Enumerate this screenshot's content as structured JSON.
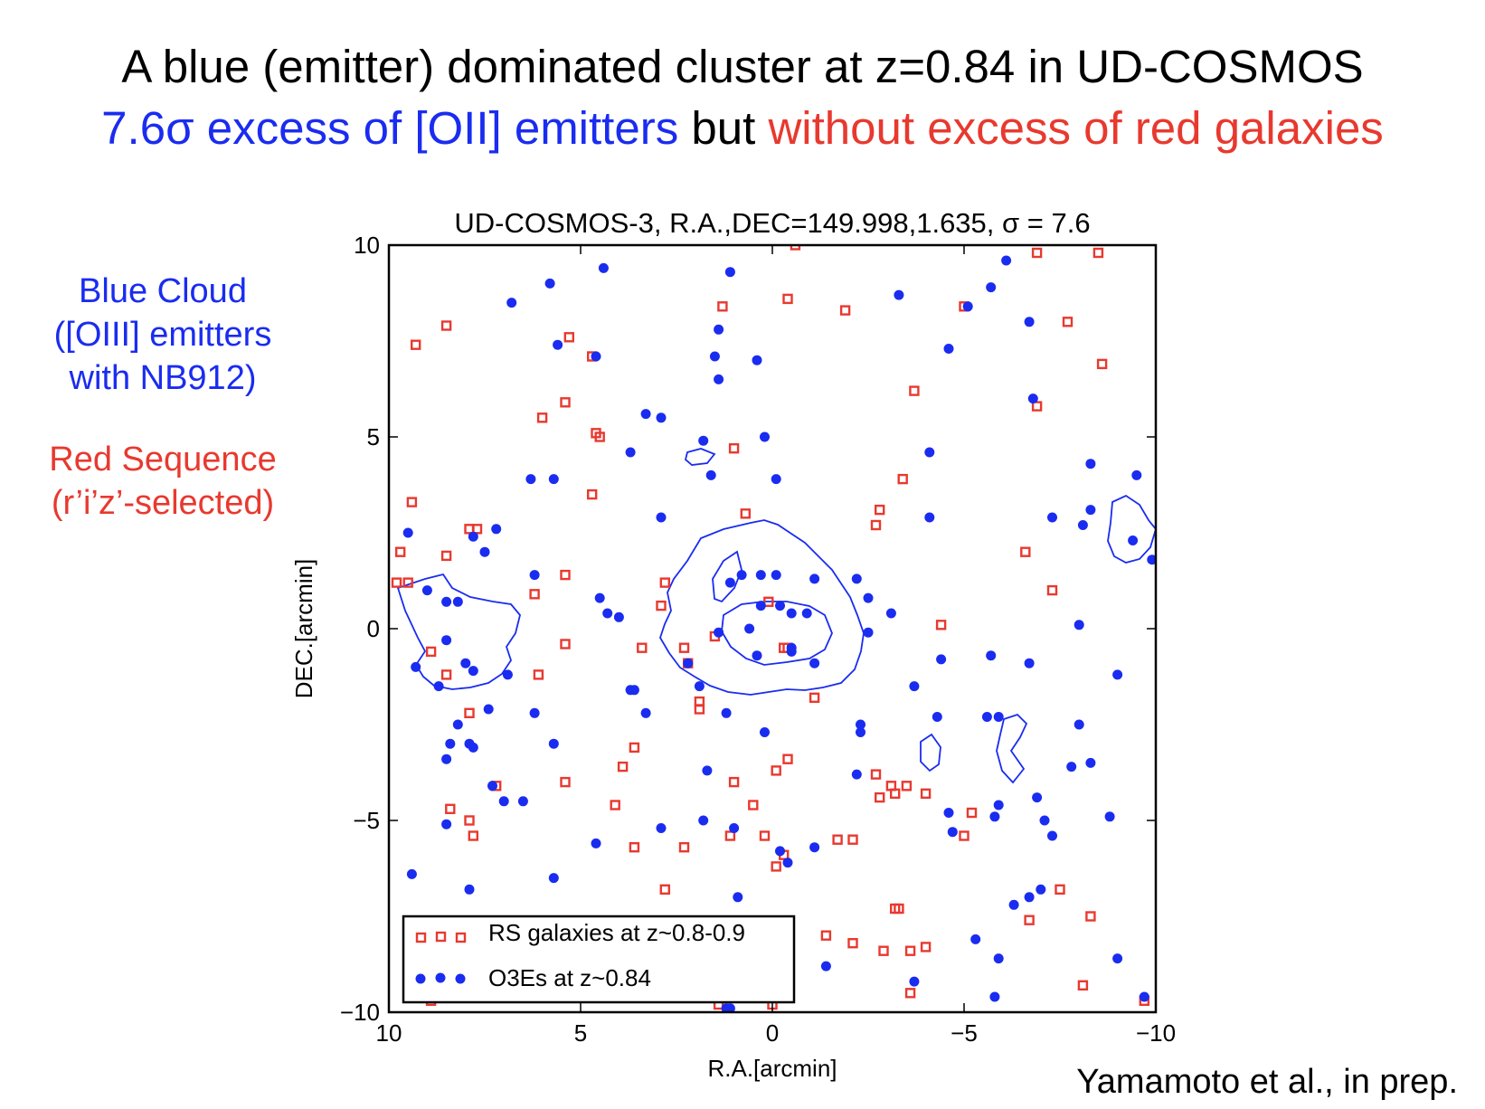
{
  "titles": {
    "line1": "A blue (emitter) dominated cluster at z=0.84 in UD-COSMOS",
    "line2_blue": "7.6σ excess of [OII] emitters",
    "line2_black": " but ",
    "line2_red": "without excess of red galaxies"
  },
  "side_labels": {
    "blue_lines": [
      "Blue Cloud",
      "([OIII] emitters",
      "with NB912)"
    ],
    "red_lines": [
      "Red Sequence",
      "(r’i’z’-selected)"
    ]
  },
  "credit": "Yamamoto et al., in prep.",
  "colors": {
    "blue": "#1a2cf0",
    "red": "#e8392f",
    "axis": "#000000"
  },
  "chart_data": {
    "type": "scatter",
    "title": "UD-COSMOS-3, R.A.,DEC=149.998,1.635, σ = 7.6",
    "xlabel": "R.A.[arcmin]",
    "ylabel": "DEC.[arcmin]",
    "xlim": [
      10,
      -10
    ],
    "ylim": [
      -10,
      10
    ],
    "xticks": [
      10,
      5,
      0,
      -5,
      -10
    ],
    "xtick_labels": [
      "10",
      "5",
      "0",
      "−5",
      "−10"
    ],
    "yticks": [
      10,
      5,
      0,
      -5,
      -10
    ],
    "ytick_labels": [
      "10",
      "5",
      "0",
      "−5",
      "−10"
    ],
    "legend": {
      "placement": "lower-left",
      "entries": [
        "RS galaxies at z~0.8-0.9",
        "O3Es at z~0.84"
      ]
    },
    "series": [
      {
        "name": "RS galaxies at z~0.8-0.9",
        "marker": "open-square",
        "color": "#e8392f",
        "points": [
          [
            9.3,
            7.4
          ],
          [
            8.5,
            7.9
          ],
          [
            5.3,
            7.6
          ],
          [
            4.7,
            7.1
          ],
          [
            1.3,
            8.4
          ],
          [
            -0.4,
            8.6
          ],
          [
            -1.9,
            8.3
          ],
          [
            -5.0,
            8.4
          ],
          [
            -6.9,
            9.8
          ],
          [
            -7.7,
            8.0
          ],
          [
            -8.5,
            9.8
          ],
          [
            -8.6,
            6.9
          ],
          [
            -0.6,
            10.0
          ],
          [
            6.0,
            5.5
          ],
          [
            5.4,
            5.9
          ],
          [
            4.6,
            5.1
          ],
          [
            4.5,
            5.0
          ],
          [
            1.0,
            4.7
          ],
          [
            -3.7,
            6.2
          ],
          [
            -6.9,
            5.8
          ],
          [
            4.7,
            3.5
          ],
          [
            9.4,
            3.3
          ],
          [
            9.7,
            2.0
          ],
          [
            9.8,
            1.2
          ],
          [
            9.5,
            1.2
          ],
          [
            8.5,
            1.9
          ],
          [
            7.9,
            2.6
          ],
          [
            7.7,
            2.6
          ],
          [
            5.4,
            1.4
          ],
          [
            6.2,
            0.9
          ],
          [
            0.7,
            3.0
          ],
          [
            -2.8,
            3.1
          ],
          [
            -2.7,
            2.7
          ],
          [
            -3.4,
            3.9
          ],
          [
            -6.6,
            2.0
          ],
          [
            -7.3,
            1.0
          ],
          [
            2.8,
            1.2
          ],
          [
            2.9,
            0.6
          ],
          [
            0.1,
            0.7
          ],
          [
            -0.3,
            -0.5
          ],
          [
            -0.4,
            -0.5
          ],
          [
            -4.4,
            0.1
          ],
          [
            1.5,
            -0.2
          ],
          [
            3.4,
            -0.5
          ],
          [
            2.3,
            -0.5
          ],
          [
            2.2,
            -0.9
          ],
          [
            8.9,
            -0.6
          ],
          [
            8.5,
            -1.2
          ],
          [
            7.9,
            -2.2
          ],
          [
            6.1,
            -1.2
          ],
          [
            5.4,
            -0.4
          ],
          [
            1.9,
            -1.9
          ],
          [
            1.9,
            -2.1
          ],
          [
            -1.1,
            -1.8
          ],
          [
            3.6,
            -3.1
          ],
          [
            3.9,
            -3.6
          ],
          [
            7.2,
            -4.1
          ],
          [
            5.4,
            -4.0
          ],
          [
            4.1,
            -4.6
          ],
          [
            1.0,
            -4.0
          ],
          [
            0.5,
            -4.6
          ],
          [
            -0.4,
            -3.4
          ],
          [
            -0.1,
            -3.7
          ],
          [
            -2.7,
            -3.8
          ],
          [
            -2.8,
            -4.4
          ],
          [
            -3.1,
            -4.1
          ],
          [
            -3.2,
            -4.3
          ],
          [
            -3.5,
            -4.1
          ],
          [
            -4.0,
            -4.3
          ],
          [
            -5.2,
            -4.8
          ],
          [
            -5.0,
            -5.4
          ],
          [
            8.4,
            -4.7
          ],
          [
            7.9,
            -5.0
          ],
          [
            7.8,
            -5.4
          ],
          [
            3.6,
            -5.7
          ],
          [
            2.3,
            -5.7
          ],
          [
            1.1,
            -5.4
          ],
          [
            0.2,
            -5.4
          ],
          [
            -0.1,
            -6.2
          ],
          [
            -0.3,
            -5.9
          ],
          [
            -1.7,
            -5.5
          ],
          [
            -2.1,
            -5.5
          ],
          [
            2.8,
            -6.8
          ],
          [
            -3.2,
            -7.3
          ],
          [
            -3.3,
            -7.3
          ],
          [
            -6.7,
            -7.6
          ],
          [
            -7.5,
            -6.8
          ],
          [
            -8.3,
            -7.5
          ],
          [
            -1.4,
            -8.0
          ],
          [
            -2.1,
            -8.2
          ],
          [
            -2.9,
            -8.4
          ],
          [
            -3.6,
            -8.4
          ],
          [
            -4.0,
            -8.3
          ],
          [
            -3.6,
            -9.5
          ],
          [
            -8.1,
            -9.3
          ],
          [
            -9.7,
            -9.7
          ],
          [
            8.9,
            -9.7
          ],
          [
            1.4,
            -9.8
          ],
          [
            0.0,
            -9.8
          ]
        ]
      },
      {
        "name": "O3Es at z~0.84",
        "marker": "filled-circle",
        "color": "#1a2cf0",
        "points": [
          [
            4.4,
            9.4
          ],
          [
            5.8,
            9.0
          ],
          [
            6.8,
            8.5
          ],
          [
            1.1,
            9.3
          ],
          [
            -3.3,
            8.7
          ],
          [
            -5.1,
            8.4
          ],
          [
            -5.7,
            8.9
          ],
          [
            -6.1,
            9.6
          ],
          [
            -6.7,
            8.0
          ],
          [
            5.6,
            7.4
          ],
          [
            4.6,
            7.1
          ],
          [
            1.4,
            7.8
          ],
          [
            1.5,
            7.1
          ],
          [
            0.4,
            7.0
          ],
          [
            1.4,
            6.5
          ],
          [
            -4.6,
            7.3
          ],
          [
            3.3,
            5.6
          ],
          [
            2.9,
            5.5
          ],
          [
            3.7,
            4.6
          ],
          [
            1.8,
            4.9
          ],
          [
            0.2,
            5.0
          ],
          [
            1.6,
            4.0
          ],
          [
            -0.1,
            3.9
          ],
          [
            6.3,
            3.9
          ],
          [
            5.7,
            3.9
          ],
          [
            -4.1,
            4.6
          ],
          [
            -6.8,
            6.0
          ],
          [
            -8.3,
            4.3
          ],
          [
            -9.5,
            4.0
          ],
          [
            9.5,
            2.5
          ],
          [
            7.8,
            2.4
          ],
          [
            7.2,
            2.6
          ],
          [
            7.5,
            2.0
          ],
          [
            6.2,
            1.4
          ],
          [
            2.9,
            2.9
          ],
          [
            -4.1,
            2.9
          ],
          [
            -7.3,
            2.9
          ],
          [
            -8.3,
            3.1
          ],
          [
            -8.1,
            2.7
          ],
          [
            -9.4,
            2.3
          ],
          [
            -9.9,
            1.8
          ],
          [
            -8.0,
            0.1
          ],
          [
            9.0,
            1.0
          ],
          [
            8.5,
            0.7
          ],
          [
            8.2,
            0.7
          ],
          [
            4.5,
            0.8
          ],
          [
            4.3,
            0.4
          ],
          [
            4.0,
            0.3
          ],
          [
            0.8,
            1.4
          ],
          [
            1.1,
            1.2
          ],
          [
            0.3,
            1.4
          ],
          [
            -0.1,
            1.4
          ],
          [
            -1.1,
            1.3
          ],
          [
            -2.2,
            1.3
          ],
          [
            -2.5,
            0.8
          ],
          [
            -2.5,
            -0.1
          ],
          [
            -3.1,
            0.4
          ],
          [
            0.3,
            0.6
          ],
          [
            -0.2,
            0.6
          ],
          [
            -0.5,
            0.4
          ],
          [
            -0.9,
            0.4
          ],
          [
            0.6,
            0.0
          ],
          [
            1.4,
            -0.1
          ],
          [
            0.4,
            -0.7
          ],
          [
            -0.5,
            -0.5
          ],
          [
            -1.1,
            -0.9
          ],
          [
            8.5,
            -0.3
          ],
          [
            8.0,
            -0.9
          ],
          [
            9.3,
            -1.0
          ],
          [
            8.7,
            -1.5
          ],
          [
            7.8,
            -1.1
          ],
          [
            6.9,
            -1.2
          ],
          [
            7.4,
            -2.1
          ],
          [
            8.2,
            -2.5
          ],
          [
            7.9,
            -3.0
          ],
          [
            6.2,
            -2.2
          ],
          [
            1.9,
            -1.5
          ],
          [
            1.2,
            -2.2
          ],
          [
            0.2,
            -2.7
          ],
          [
            -0.5,
            -0.6
          ],
          [
            2.2,
            -0.9
          ],
          [
            3.6,
            -1.6
          ],
          [
            3.3,
            -2.2
          ],
          [
            3.7,
            -1.6
          ],
          [
            -2.3,
            -2.5
          ],
          [
            -3.7,
            -1.5
          ],
          [
            -4.4,
            -0.8
          ],
          [
            -5.7,
            -0.7
          ],
          [
            -6.7,
            -0.9
          ],
          [
            -8.0,
            -2.5
          ],
          [
            -9.0,
            -1.2
          ],
          [
            9.4,
            -6.4
          ],
          [
            8.5,
            -5.1
          ],
          [
            8.4,
            -3.0
          ],
          [
            8.5,
            -3.4
          ],
          [
            7.8,
            -3.1
          ],
          [
            7.3,
            -4.1
          ],
          [
            7.0,
            -4.5
          ],
          [
            6.5,
            -4.5
          ],
          [
            5.7,
            -3.0
          ],
          [
            1.7,
            -3.7
          ],
          [
            -2.3,
            -2.7
          ],
          [
            -2.2,
            -3.8
          ],
          [
            -4.3,
            -2.3
          ],
          [
            -5.6,
            -2.3
          ],
          [
            -5.9,
            -2.3
          ],
          [
            -5.9,
            -4.6
          ],
          [
            -5.8,
            -4.9
          ],
          [
            -4.6,
            -4.8
          ],
          [
            -4.7,
            -5.3
          ],
          [
            -6.9,
            -4.4
          ],
          [
            -7.1,
            -5.0
          ],
          [
            -7.3,
            -5.4
          ],
          [
            -7.8,
            -3.6
          ],
          [
            -8.3,
            -3.5
          ],
          [
            -8.8,
            -4.9
          ],
          [
            2.9,
            -5.2
          ],
          [
            1.8,
            -5.0
          ],
          [
            4.6,
            -5.6
          ],
          [
            1.0,
            -5.2
          ],
          [
            -1.1,
            -5.7
          ],
          [
            -0.2,
            -5.8
          ],
          [
            -0.4,
            -6.1
          ],
          [
            5.7,
            -6.5
          ],
          [
            7.9,
            -6.8
          ],
          [
            0.9,
            -7.0
          ],
          [
            -6.3,
            -7.2
          ],
          [
            -6.7,
            -7.0
          ],
          [
            -7.0,
            -6.8
          ],
          [
            -5.3,
            -8.1
          ],
          [
            -5.9,
            -8.6
          ],
          [
            -1.4,
            -8.8
          ],
          [
            -3.7,
            -9.2
          ],
          [
            -5.8,
            -9.6
          ],
          [
            -9.0,
            -8.6
          ],
          [
            1.2,
            -9.9
          ],
          [
            1.1,
            -9.9
          ],
          [
            -9.7,
            -9.6
          ]
        ]
      }
    ]
  }
}
